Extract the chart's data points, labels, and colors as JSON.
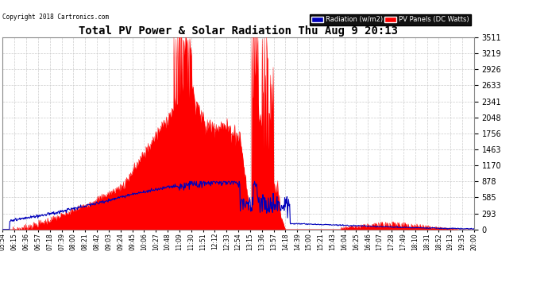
{
  "title": "Total PV Power & Solar Radiation Thu Aug 9 20:13",
  "copyright": "Copyright 2018 Cartronics.com",
  "yticks": [
    0.0,
    292.6,
    585.2,
    877.8,
    1170.4,
    1463.0,
    1755.6,
    2048.2,
    2340.8,
    2633.4,
    2926.0,
    3218.6,
    3511.2
  ],
  "ymax": 3511.2,
  "legend_radiation": "Radiation (w/m2)",
  "legend_pv": "PV Panels (DC Watts)",
  "bg_color": "#ffffff",
  "grid_color": "#cccccc",
  "pv_color": "#ff0000",
  "radiation_color": "#0000bb",
  "xtick_labels": [
    "05:54",
    "06:15",
    "06:36",
    "06:57",
    "07:18",
    "07:39",
    "08:00",
    "08:21",
    "08:42",
    "09:03",
    "09:24",
    "09:45",
    "10:06",
    "10:27",
    "10:48",
    "11:09",
    "11:30",
    "11:51",
    "12:12",
    "12:33",
    "12:54",
    "13:15",
    "13:36",
    "13:57",
    "14:18",
    "14:39",
    "15:00",
    "15:21",
    "15:43",
    "16:04",
    "16:25",
    "16:46",
    "17:07",
    "17:28",
    "17:49",
    "18:10",
    "18:31",
    "18:52",
    "19:13",
    "19:35",
    "20:00"
  ],
  "figsize": [
    6.9,
    3.75
  ],
  "dpi": 100
}
